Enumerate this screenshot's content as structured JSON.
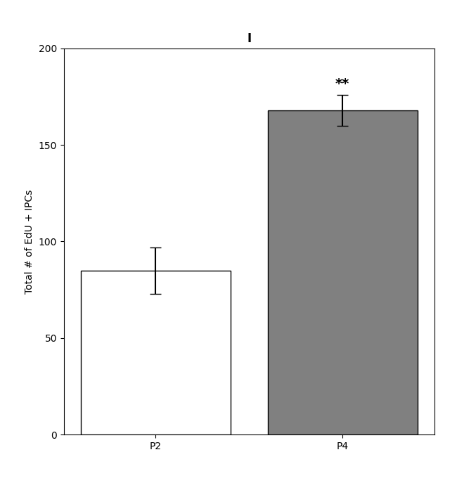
{
  "chart_data": {
    "type": "bar",
    "title": "I",
    "categories": [
      "P2",
      "P4"
    ],
    "values": [
      85,
      168
    ],
    "errors": [
      12,
      8
    ],
    "colors": [
      "#ffffff",
      "#808080"
    ],
    "ylabel": "Total # of EdU + IPCs",
    "ylim": [
      0,
      200
    ],
    "yticks": [
      0,
      50,
      100,
      150,
      200
    ],
    "grid": false,
    "annotations": [
      {
        "category": "P4",
        "text": "**"
      }
    ]
  }
}
